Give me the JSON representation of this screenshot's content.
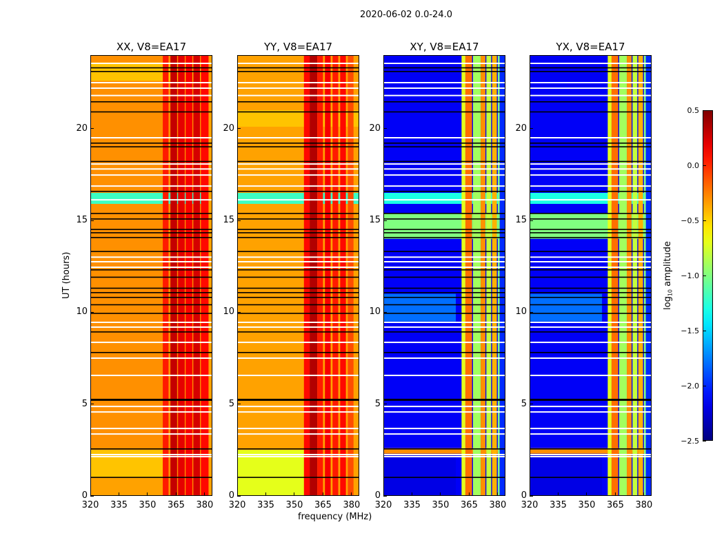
{
  "chart_data": {
    "type": "heatmap",
    "title": "2020-06-02 0.0-24.0",
    "xlabel": "frequency (MHz)",
    "ylabel": "UT (hours)",
    "xlim": [
      320,
      384
    ],
    "ylim": [
      0,
      24
    ],
    "xticks": [
      "320",
      "335",
      "350",
      "365",
      "380"
    ],
    "yticks": [
      "0",
      "5",
      "10",
      "15",
      "20"
    ],
    "colorbar": {
      "label": "log10 amplitude",
      "label_main": "log",
      "label_sub": "10",
      "label_rest": " amplitude",
      "colormap": "jet",
      "range": [
        -2.5,
        0.5
      ],
      "ticks": [
        "0.5",
        "0.0",
        "−0.5",
        "−1.0",
        "−1.5",
        "−2.0",
        "−2.5"
      ]
    },
    "white_rows": [
      23.55,
      22.5,
      22.2,
      21.8,
      19.5,
      18.07,
      17.8,
      17.47,
      16.87,
      16.12,
      13.0,
      12.75,
      12.45,
      9.45,
      9.19,
      8.36,
      7.5,
      6.56,
      4.87,
      4.57,
      3.67,
      3.37,
      2.25,
      2.14
    ],
    "black_rows": [
      23.3,
      23.1,
      21.45,
      20.9,
      19.2,
      19.0,
      18.2,
      16.57,
      15.37,
      15.07,
      14.5,
      14.32,
      14.06,
      13.3,
      12.3,
      11.9,
      11.3,
      11.06,
      10.8,
      10.4,
      9.93,
      8.92,
      7.8,
      5.25,
      5.2,
      2.55,
      1.0
    ],
    "panels": [
      {
        "title": "XX, V8=EA17",
        "base": -0.3,
        "bands": [
          [
            358,
            361,
            0.05
          ],
          [
            362,
            365.5,
            0.3
          ],
          [
            366,
            369.5,
            0.2
          ],
          [
            370,
            373.5,
            0.15
          ],
          [
            374,
            377.5,
            0.25
          ],
          [
            378,
            382,
            0.1
          ],
          [
            382,
            384,
            -0.35
          ]
        ],
        "rfi_rows": [
          [
            15.9,
            16.5,
            -1.2
          ],
          [
            22.6,
            23.6,
            -0.45
          ]
        ],
        "segments": [
          [
            1.0,
            2.5,
            -0.45
          ],
          [
            0,
            1.0,
            -0.35
          ]
        ]
      },
      {
        "title": "YY, V8=EA17",
        "base": -0.35,
        "bands": [
          [
            355,
            358,
            0.1
          ],
          [
            358,
            362,
            0.35
          ],
          [
            362,
            365,
            0.05
          ],
          [
            366,
            369,
            0.15
          ],
          [
            370,
            373,
            0.05
          ],
          [
            374,
            377,
            0.1
          ],
          [
            378,
            381,
            -0.1
          ]
        ],
        "rfi_rows": [
          [
            15.9,
            16.5,
            -1.2
          ],
          [
            20.1,
            21.0,
            -0.45
          ]
        ],
        "segments": [
          [
            0,
            2.5,
            -0.7
          ]
        ]
      },
      {
        "title": "XY, V8=EA17",
        "base": -2.15,
        "bands": [
          [
            361,
            363,
            -0.7
          ],
          [
            363,
            366.5,
            -0.2
          ],
          [
            367,
            371,
            -0.9
          ],
          [
            371,
            373.5,
            -0.3
          ],
          [
            374,
            376.5,
            -0.8
          ],
          [
            377,
            379.5,
            -0.4
          ],
          [
            380,
            381,
            -1.0
          ],
          [
            381,
            384,
            -2.0
          ]
        ],
        "rfi_rows": [
          [
            15.9,
            16.5,
            -1.3
          ],
          [
            14.0,
            15.4,
            -1.0
          ],
          [
            2.3,
            2.6,
            -0.3
          ]
        ],
        "segments": [
          [
            9.5,
            11.0,
            -1.8
          ],
          [
            0,
            2.5,
            -2.2
          ]
        ]
      },
      {
        "title": "YX, V8=EA17",
        "base": -2.15,
        "bands": [
          [
            361,
            363,
            -0.7
          ],
          [
            363,
            366.5,
            -0.2
          ],
          [
            367,
            371,
            -0.9
          ],
          [
            371,
            373.5,
            -0.3
          ],
          [
            374,
            376.5,
            -0.8
          ],
          [
            377,
            379.5,
            -0.4
          ],
          [
            380,
            381,
            -1.0
          ],
          [
            381,
            384,
            -2.0
          ]
        ],
        "rfi_rows": [
          [
            15.9,
            16.5,
            -1.3
          ],
          [
            14.0,
            15.4,
            -1.0
          ],
          [
            2.3,
            2.6,
            -0.3
          ]
        ],
        "segments": [
          [
            9.5,
            11.0,
            -1.8
          ],
          [
            0,
            2.5,
            -2.2
          ]
        ]
      }
    ]
  }
}
